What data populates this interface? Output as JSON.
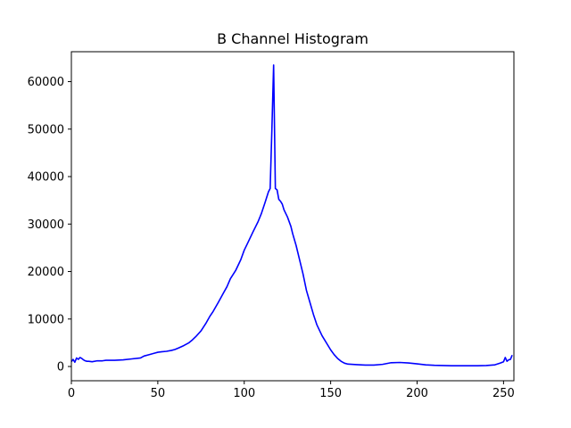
{
  "chart_data": {
    "type": "line",
    "title": "B Channel Histogram",
    "xlabel": "",
    "ylabel": "",
    "xlim": [
      0,
      256
    ],
    "ylim": [
      -3000,
      66300
    ],
    "x_ticks": [
      0,
      50,
      100,
      150,
      200,
      250
    ],
    "y_ticks": [
      0,
      10000,
      20000,
      30000,
      40000,
      50000,
      60000
    ],
    "grid": false,
    "legend": "none",
    "series": [
      {
        "color": "#0000ff",
        "x": [
          0,
          1,
          2,
          3,
          4,
          5,
          6,
          7,
          8,
          9,
          10,
          12,
          15,
          18,
          20,
          25,
          30,
          35,
          40,
          42,
          45,
          48,
          50,
          52,
          55,
          58,
          60,
          62,
          65,
          68,
          70,
          72,
          75,
          78,
          80,
          82,
          85,
          88,
          90,
          92,
          95,
          98,
          100,
          102,
          105,
          108,
          110,
          112,
          114,
          115,
          116,
          117,
          118,
          119,
          120,
          121,
          122,
          123,
          125,
          127,
          128,
          130,
          132,
          134,
          136,
          138,
          140,
          142,
          145,
          148,
          150,
          152,
          154,
          156,
          158,
          160,
          165,
          170,
          175,
          180,
          185,
          190,
          195,
          200,
          205,
          210,
          215,
          220,
          225,
          230,
          235,
          240,
          245,
          248,
          250,
          251,
          252,
          253,
          254,
          255
        ],
        "y": [
          1000,
          1500,
          900,
          1800,
          1500,
          1900,
          1700,
          1400,
          1200,
          1100,
          1100,
          1000,
          1200,
          1200,
          1300,
          1300,
          1400,
          1600,
          1800,
          2200,
          2500,
          2800,
          3000,
          3100,
          3200,
          3400,
          3600,
          3900,
          4400,
          5000,
          5600,
          6300,
          7500,
          9200,
          10500,
          11600,
          13500,
          15500,
          16800,
          18500,
          20200,
          22500,
          24500,
          26000,
          28300,
          30500,
          32300,
          34500,
          36800,
          37500,
          50000,
          63500,
          37500,
          37200,
          35200,
          34800,
          34200,
          33000,
          31500,
          29500,
          28000,
          25500,
          22500,
          19500,
          16000,
          13500,
          11000,
          8800,
          6500,
          4700,
          3500,
          2500,
          1700,
          1100,
          700,
          500,
          400,
          300,
          300,
          450,
          800,
          850,
          750,
          550,
          350,
          250,
          200,
          150,
          150,
          150,
          150,
          200,
          350,
          700,
          1000,
          1900,
          1100,
          1400,
          1500,
          2400
        ]
      }
    ]
  }
}
